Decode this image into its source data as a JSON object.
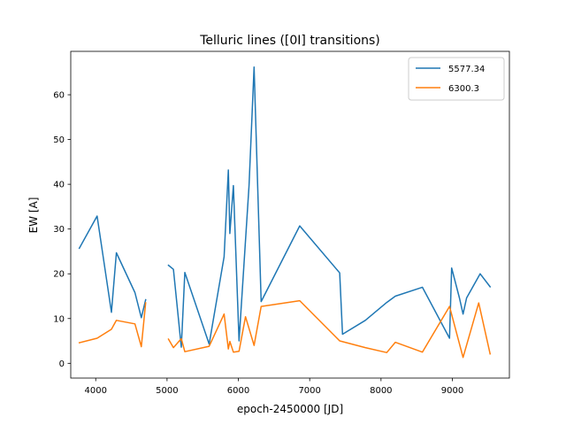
{
  "chart_data": {
    "type": "line",
    "title": "Telluric lines ([0I] transitions)",
    "xlabel": "epoch-2450000 [JD]",
    "ylabel": "EW [A]",
    "xlim": [
      3650,
      9800
    ],
    "ylim": [
      -3.3,
      69.7
    ],
    "xticks": [
      4000,
      5000,
      6000,
      7000,
      8000,
      9000
    ],
    "yticks": [
      0,
      10,
      20,
      30,
      40,
      50,
      60
    ],
    "grid": false,
    "legend_position": "top-right",
    "series": [
      {
        "name": "5577.34",
        "color": "#1f77b4",
        "segments": [
          [
            [
              3770,
              25.7
            ],
            [
              4020,
              32.9
            ],
            [
              4220,
              11.4
            ],
            [
              4290,
              24.7
            ],
            [
              4550,
              15.8
            ],
            [
              4640,
              10.2
            ],
            [
              4700,
              14.2
            ]
          ],
          [
            [
              5020,
              21.9
            ],
            [
              5090,
              21.0
            ],
            [
              5200,
              3.6
            ],
            [
              5250,
              20.3
            ],
            [
              5590,
              4.3
            ],
            [
              5800,
              23.8
            ],
            [
              5860,
              43.2
            ],
            [
              5880,
              29.0
            ],
            [
              5930,
              39.7
            ],
            [
              6010,
              5.0
            ],
            [
              6150,
              39.7
            ],
            [
              6220,
              66.2
            ],
            [
              6320,
              13.8
            ],
            [
              6860,
              30.7
            ],
            [
              7420,
              20.2
            ],
            [
              7460,
              6.5
            ],
            [
              7780,
              9.6
            ],
            [
              8080,
              13.6
            ],
            [
              8200,
              15.0
            ],
            [
              8580,
              17.0
            ],
            [
              8960,
              5.6
            ],
            [
              8990,
              21.3
            ],
            [
              9100,
              14.6
            ],
            [
              9150,
              11.0
            ],
            [
              9200,
              14.6
            ],
            [
              9390,
              20.0
            ],
            [
              9530,
              17.1
            ]
          ]
        ]
      },
      {
        "name": "6300.3",
        "color": "#ff7f0e",
        "segments": [
          [
            [
              3770,
              4.6
            ],
            [
              4020,
              5.6
            ],
            [
              4220,
              7.6
            ],
            [
              4290,
              9.6
            ],
            [
              4550,
              8.8
            ],
            [
              4640,
              3.7
            ],
            [
              4700,
              13.5
            ]
          ],
          [
            [
              5020,
              5.4
            ],
            [
              5090,
              3.5
            ],
            [
              5200,
              5.5
            ],
            [
              5250,
              2.6
            ],
            [
              5590,
              3.8
            ],
            [
              5800,
              11.0
            ],
            [
              5860,
              3.2
            ],
            [
              5880,
              4.9
            ],
            [
              5930,
              2.5
            ],
            [
              6010,
              2.7
            ],
            [
              6100,
              10.4
            ],
            [
              6220,
              4.0
            ],
            [
              6320,
              12.7
            ],
            [
              6860,
              14.0
            ],
            [
              7420,
              5.0
            ],
            [
              7780,
              3.5
            ],
            [
              8080,
              2.4
            ],
            [
              8200,
              4.7
            ],
            [
              8580,
              2.5
            ],
            [
              8960,
              12.7
            ],
            [
              9150,
              1.3
            ],
            [
              9370,
              13.5
            ],
            [
              9530,
              2.1
            ]
          ]
        ]
      }
    ]
  }
}
